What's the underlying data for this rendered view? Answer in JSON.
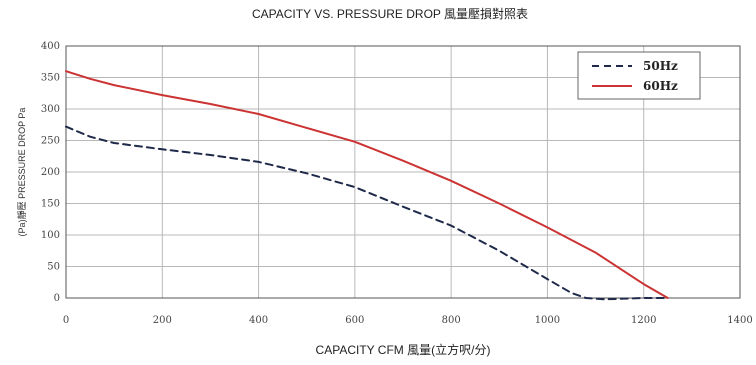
{
  "chart_data": {
    "type": "line",
    "title": "CAPACITY VS. PRESSURE DROP 風量壓損對照表",
    "xlabel": "CAPACITY CFM 風量(立方呎/分)",
    "ylabel": "(Pa)靜壓 PRESSURE DROP Pa",
    "xlim": [
      0,
      1400
    ],
    "ylim": [
      0,
      400
    ],
    "xticks": [
      "0",
      "200",
      "400",
      "600",
      "800",
      "1000",
      "1200",
      "1400"
    ],
    "yticks": [
      "0",
      "50",
      "100",
      "150",
      "200",
      "250",
      "300",
      "350",
      "400"
    ],
    "grid": true,
    "legend_position": "top-right",
    "series": [
      {
        "name": "50Hz",
        "style": "dashed",
        "color": "#1f2a4a",
        "points": [
          [
            0,
            272
          ],
          [
            50,
            256
          ],
          [
            100,
            246
          ],
          [
            200,
            236
          ],
          [
            300,
            227
          ],
          [
            400,
            216
          ],
          [
            500,
            198
          ],
          [
            600,
            176
          ],
          [
            700,
            145
          ],
          [
            800,
            115
          ],
          [
            900,
            75
          ],
          [
            1000,
            30
          ],
          [
            1050,
            8
          ],
          [
            1080,
            0
          ],
          [
            1120,
            -2
          ],
          [
            1200,
            0
          ],
          [
            1250,
            0
          ]
        ]
      },
      {
        "name": "60Hz",
        "style": "solid",
        "color": "#cc3333",
        "points": [
          [
            0,
            360
          ],
          [
            50,
            348
          ],
          [
            100,
            338
          ],
          [
            200,
            322
          ],
          [
            300,
            308
          ],
          [
            400,
            292
          ],
          [
            500,
            270
          ],
          [
            600,
            248
          ],
          [
            700,
            218
          ],
          [
            800,
            186
          ],
          [
            900,
            150
          ],
          [
            1000,
            112
          ],
          [
            1100,
            72
          ],
          [
            1200,
            22
          ],
          [
            1250,
            0
          ]
        ]
      }
    ]
  }
}
